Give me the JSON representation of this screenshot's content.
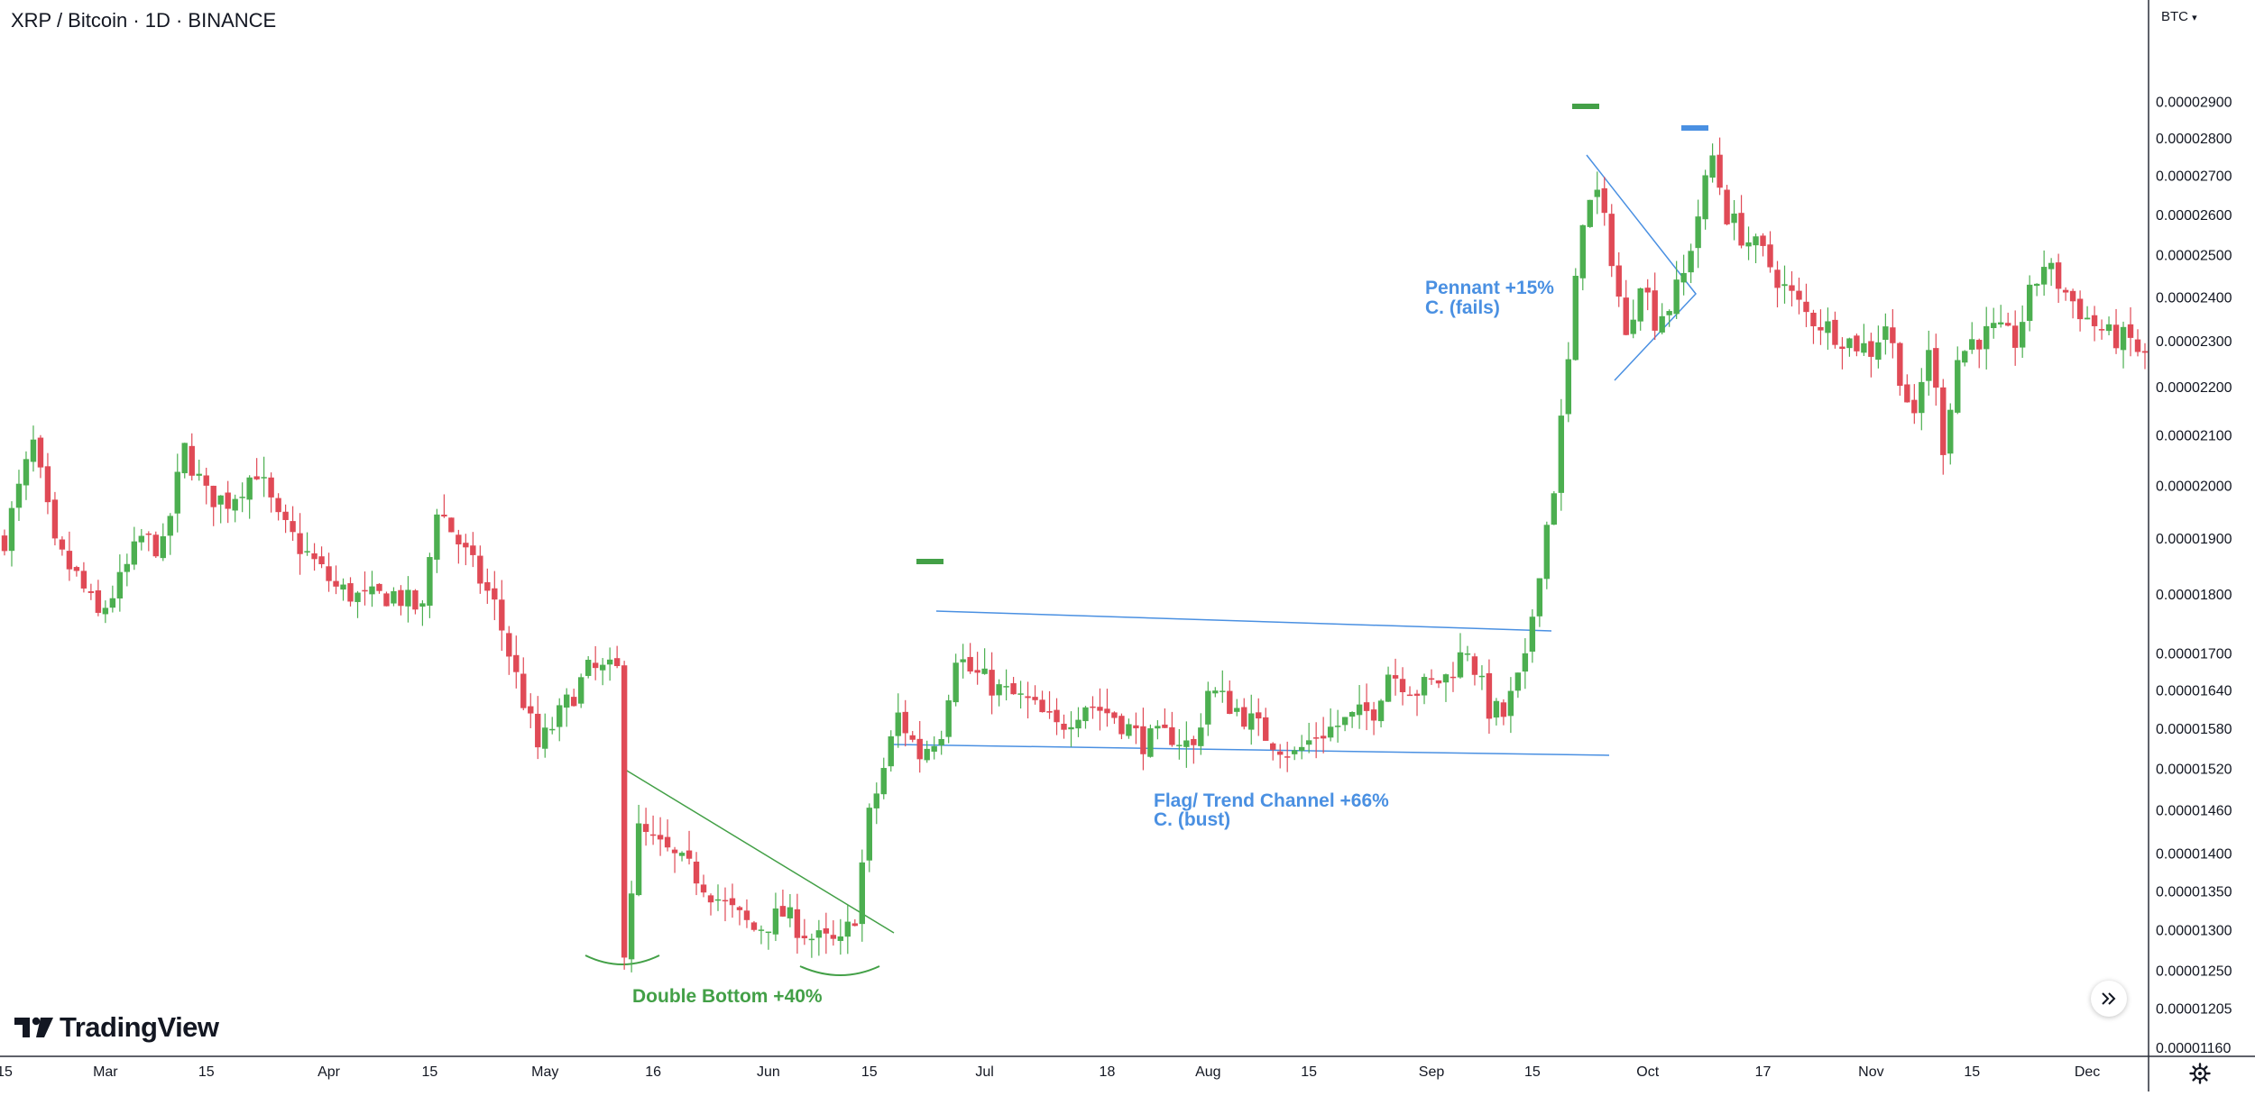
{
  "header": {
    "title": "XRP / Bitcoin · 1D · BINANCE",
    "currency_label": "BTC"
  },
  "branding": {
    "logo_text": "TradingView"
  },
  "colors": {
    "up": "#4caf50",
    "down": "#e04a56",
    "blue": "#4a90e2",
    "green": "#43a047",
    "grid": "#e0e3eb",
    "text": "#131722"
  },
  "icons": {
    "scroll": "double-chevron-right-icon",
    "settings": "gear-icon",
    "logo": "tradingview-logo-icon"
  },
  "chart_data": {
    "type": "candlestick",
    "title": "XRP / Bitcoin · 1D · BINANCE",
    "ylim": [
      1.15e-05,
      3.2e-05
    ],
    "y_ticks": [
      {
        "v": 2.9e-05,
        "label": "0.00002900"
      },
      {
        "v": 2.8e-05,
        "label": "0.00002800"
      },
      {
        "v": 2.7e-05,
        "label": "0.00002700"
      },
      {
        "v": 2.6e-05,
        "label": "0.00002600"
      },
      {
        "v": 2.5e-05,
        "label": "0.00002500"
      },
      {
        "v": 2.4e-05,
        "label": "0.00002400"
      },
      {
        "v": 2.3e-05,
        "label": "0.00002300"
      },
      {
        "v": 2.2e-05,
        "label": "0.00002200"
      },
      {
        "v": 2.1e-05,
        "label": "0.00002100"
      },
      {
        "v": 2e-05,
        "label": "0.00002000"
      },
      {
        "v": 1.9e-05,
        "label": "0.00001900"
      },
      {
        "v": 1.8e-05,
        "label": "0.00001800"
      },
      {
        "v": 1.7e-05,
        "label": "0.00001700"
      },
      {
        "v": 1.64e-05,
        "label": "0.00001640"
      },
      {
        "v": 1.58e-05,
        "label": "0.00001580"
      },
      {
        "v": 1.52e-05,
        "label": "0.00001520"
      },
      {
        "v": 1.46e-05,
        "label": "0.00001460"
      },
      {
        "v": 1.4e-05,
        "label": "0.00001400"
      },
      {
        "v": 1.35e-05,
        "label": "0.00001350"
      },
      {
        "v": 1.3e-05,
        "label": "0.00001300"
      },
      {
        "v": 1.25e-05,
        "label": "0.00001250"
      },
      {
        "v": 1.205e-05,
        "label": "0.00001205"
      },
      {
        "v": 1.16e-05,
        "label": "0.00001160"
      }
    ],
    "x_ticks": [
      {
        "d": 0,
        "label": "15"
      },
      {
        "d": 14,
        "label": "Mar"
      },
      {
        "d": 28,
        "label": "15"
      },
      {
        "d": 45,
        "label": "Apr"
      },
      {
        "d": 59,
        "label": "15"
      },
      {
        "d": 75,
        "label": "May"
      },
      {
        "d": 90,
        "label": "16"
      },
      {
        "d": 106,
        "label": "Jun"
      },
      {
        "d": 120,
        "label": "15"
      },
      {
        "d": 136,
        "label": "Jul"
      },
      {
        "d": 153,
        "label": "18"
      },
      {
        "d": 167,
        "label": "Aug"
      },
      {
        "d": 181,
        "label": "15"
      },
      {
        "d": 198,
        "label": "Sep"
      },
      {
        "d": 212,
        "label": "15"
      },
      {
        "d": 228,
        "label": "Oct"
      },
      {
        "d": 244,
        "label": "17"
      },
      {
        "d": 259,
        "label": "Nov"
      },
      {
        "d": 273,
        "label": "15"
      },
      {
        "d": 289,
        "label": "Dec"
      }
    ],
    "price_anchors": [
      [
        0,
        1.9e-05
      ],
      [
        4,
        2.08e-05
      ],
      [
        7,
        1.88e-05
      ],
      [
        10,
        1.83e-05
      ],
      [
        13,
        1.76e-05
      ],
      [
        16,
        1.82e-05
      ],
      [
        19,
        1.9e-05
      ],
      [
        22,
        1.88e-05
      ],
      [
        25,
        2.07e-05
      ],
      [
        28,
        1.98e-05
      ],
      [
        31,
        1.97e-05
      ],
      [
        35,
        2.03e-05
      ],
      [
        38,
        1.93e-05
      ],
      [
        42,
        1.87e-05
      ],
      [
        46,
        1.81e-05
      ],
      [
        50,
        1.79e-05
      ],
      [
        54,
        1.8e-05
      ],
      [
        58,
        1.77e-05
      ],
      [
        60,
        1.96e-05
      ],
      [
        64,
        1.87e-05
      ],
      [
        68,
        1.78e-05
      ],
      [
        71,
        1.66e-05
      ],
      [
        74,
        1.55e-05
      ],
      [
        77,
        1.6e-05
      ],
      [
        81,
        1.67e-05
      ],
      [
        85,
        1.67e-05
      ],
      [
        86,
        1.28e-05
      ],
      [
        88,
        1.43e-05
      ],
      [
        92,
        1.4e-05
      ],
      [
        96,
        1.37e-05
      ],
      [
        100,
        1.33e-05
      ],
      [
        104,
        1.3e-05
      ],
      [
        108,
        1.32e-05
      ],
      [
        112,
        1.29e-05
      ],
      [
        116,
        1.28e-05
      ],
      [
        118,
        1.32e-05
      ],
      [
        120,
        1.45e-05
      ],
      [
        122,
        1.52e-05
      ],
      [
        124,
        1.6e-05
      ],
      [
        127,
        1.54e-05
      ],
      [
        130,
        1.58e-05
      ],
      [
        132,
        1.7e-05
      ],
      [
        134,
        1.67e-05
      ],
      [
        138,
        1.64e-05
      ],
      [
        142,
        1.62e-05
      ],
      [
        146,
        1.58e-05
      ],
      [
        150,
        1.62e-05
      ],
      [
        154,
        1.6e-05
      ],
      [
        158,
        1.56e-05
      ],
      [
        162,
        1.57e-05
      ],
      [
        165,
        1.55e-05
      ],
      [
        167,
        1.64e-05
      ],
      [
        171,
        1.61e-05
      ],
      [
        175,
        1.57e-05
      ],
      [
        179,
        1.54e-05
      ],
      [
        182,
        1.57e-05
      ],
      [
        186,
        1.59e-05
      ],
      [
        190,
        1.61e-05
      ],
      [
        192,
        1.67e-05
      ],
      [
        196,
        1.64e-05
      ],
      [
        200,
        1.66e-05
      ],
      [
        203,
        1.71e-05
      ],
      [
        206,
        1.61e-05
      ],
      [
        208,
        1.6e-05
      ],
      [
        211,
        1.68e-05
      ],
      [
        213,
        1.85e-05
      ],
      [
        215,
        2e-05
      ],
      [
        217,
        2.25e-05
      ],
      [
        219,
        2.6e-05
      ],
      [
        221,
        2.65e-05
      ],
      [
        223,
        2.5e-05
      ],
      [
        225,
        2.3e-05
      ],
      [
        227,
        2.45e-05
      ],
      [
        229,
        2.35e-05
      ],
      [
        231,
        2.38e-05
      ],
      [
        233,
        2.45e-05
      ],
      [
        235,
        2.6e-05
      ],
      [
        237,
        2.75e-05
      ],
      [
        239,
        2.6e-05
      ],
      [
        241,
        2.55e-05
      ],
      [
        244,
        2.5e-05
      ],
      [
        247,
        2.42e-05
      ],
      [
        250,
        2.36e-05
      ],
      [
        253,
        2.33e-05
      ],
      [
        256,
        2.3e-05
      ],
      [
        259,
        2.28e-05
      ],
      [
        261,
        2.34e-05
      ],
      [
        263,
        2.23e-05
      ],
      [
        265,
        2.12e-05
      ],
      [
        267,
        2.29e-05
      ],
      [
        269,
        2.08e-05
      ],
      [
        271,
        2.26e-05
      ],
      [
        273,
        2.3e-05
      ],
      [
        276,
        2.32e-05
      ],
      [
        279,
        2.3e-05
      ],
      [
        281,
        2.4e-05
      ],
      [
        283,
        2.48e-05
      ],
      [
        286,
        2.41e-05
      ],
      [
        289,
        2.35e-05
      ],
      [
        292,
        2.31e-05
      ],
      [
        295,
        2.3e-05
      ],
      [
        297,
        2.26e-05
      ]
    ],
    "annotations": [
      {
        "text": "Double Bottom +40%",
        "color": "green"
      },
      {
        "text": "Flag/ Trend Channel +66%",
        "text2": "C. (bust)",
        "color": "blue"
      },
      {
        "text": "Pennant +15%",
        "text2": "C. (fails)",
        "color": "blue"
      }
    ]
  }
}
